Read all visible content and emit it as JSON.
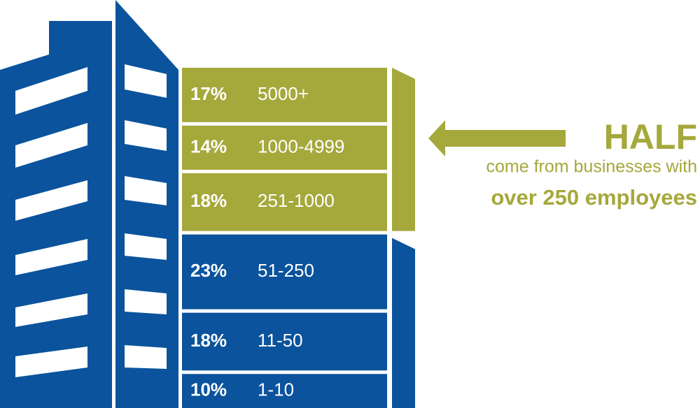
{
  "chart_data": {
    "type": "stacked-bar",
    "categories": [
      "5000+",
      "1000-4999",
      "251-1000",
      "51-250",
      "11-50",
      "1-10"
    ],
    "values": [
      17,
      14,
      18,
      23,
      18,
      10
    ],
    "value_labels": [
      "17%",
      "14%",
      "18%",
      "23%",
      "18%",
      "10%"
    ],
    "colors": [
      "#a5a83b",
      "#a5a83b",
      "#a5a83b",
      "#0b539c",
      "#0b539c",
      "#0b539c"
    ],
    "annotation": {
      "title": "HALF",
      "line1": "come from businesses with",
      "line2": "over 250 employees"
    }
  }
}
